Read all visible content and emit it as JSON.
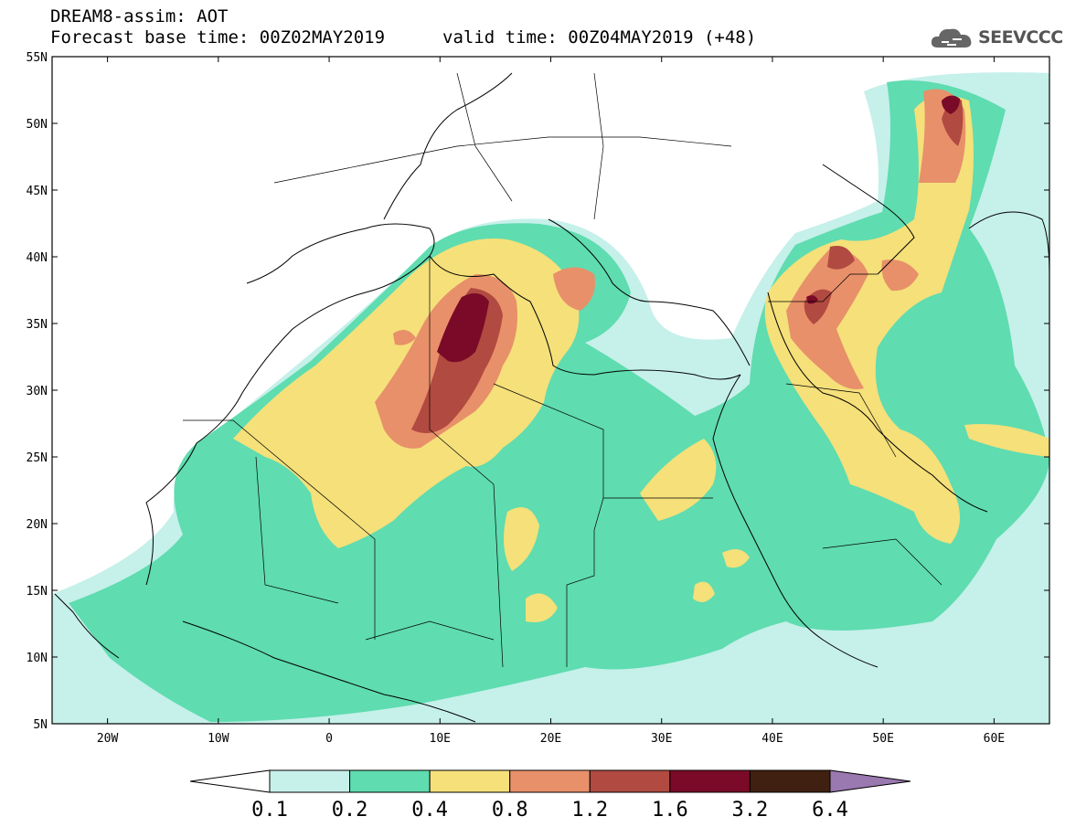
{
  "header": {
    "title": "DREAM8-assim: AOT",
    "base_time": "Forecast base time: 00Z02MAY2019",
    "valid_time": "valid time: 00Z04MAY2019 (+48)",
    "logo": "SEEVCCC"
  },
  "map": {
    "variable": "AOT",
    "lon_range": [
      -25,
      65
    ],
    "lat_range": [
      5,
      55
    ],
    "lat_labels": [
      "55N",
      "50N",
      "45N",
      "40N",
      "35N",
      "30N",
      "25N",
      "20N",
      "15N",
      "10N",
      "5N"
    ],
    "lat_values": [
      55,
      50,
      45,
      40,
      35,
      30,
      25,
      20,
      15,
      10,
      5
    ],
    "lon_labels": [
      "20W",
      "10W",
      "0",
      "10E",
      "20E",
      "30E",
      "40E",
      "50E",
      "60E"
    ],
    "lon_values": [
      -20,
      -10,
      0,
      10,
      20,
      30,
      40,
      50,
      60
    ]
  },
  "colorbar": {
    "levels": [
      "0.1",
      "0.2",
      "0.4",
      "0.8",
      "1.2",
      "1.6",
      "3.2",
      "6.4"
    ],
    "colors": [
      "#ffffff",
      "#c6f0ea",
      "#5fdcb0",
      "#f5e07a",
      "#e8906a",
      "#b14a40",
      "#7a0a28",
      "#402010",
      "#9a78b0"
    ]
  }
}
